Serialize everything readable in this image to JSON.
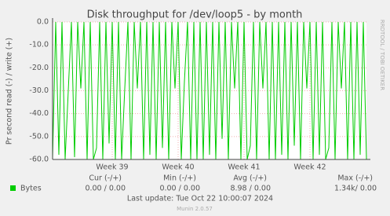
{
  "chart_data": {
    "type": "line",
    "title": "Disk throughput for /dev/loop5 - by month",
    "y_label": "Pr second read (-) / write (+)",
    "side_label": "RRDTOOL / TOBI OETIKER",
    "x": [
      0,
      1,
      2,
      3,
      4,
      5,
      6,
      7,
      8,
      9,
      10,
      11,
      12,
      13,
      14,
      15,
      16,
      17,
      18,
      19,
      20,
      21,
      22,
      23,
      24,
      25,
      26,
      27,
      28,
      29,
      30,
      31,
      32,
      33,
      34,
      35,
      36,
      37,
      38,
      39,
      40,
      41,
      42,
      43,
      44,
      45,
      46,
      47,
      48,
      49,
      50,
      51,
      52,
      53,
      54,
      55,
      56,
      57,
      58,
      59,
      60,
      61,
      62,
      63,
      64,
      65,
      66,
      67,
      68,
      69,
      70,
      71,
      72,
      73,
      74,
      75,
      76,
      77,
      78,
      79,
      80,
      81,
      82,
      83,
      84,
      85,
      86,
      87,
      88,
      89,
      90,
      91,
      92,
      93,
      94,
      95,
      96,
      97,
      98,
      99,
      100
    ],
    "xlim": [
      0,
      100
    ],
    "xticks": [
      {
        "value": 19,
        "label": "Week 39"
      },
      {
        "value": 40,
        "label": "Week 40"
      },
      {
        "value": 61,
        "label": "Week 41"
      },
      {
        "value": 82,
        "label": "Week 42"
      }
    ],
    "ylim": [
      -60,
      0
    ],
    "yticks": [
      {
        "value": -60,
        "label": "-60.0"
      },
      {
        "value": -50,
        "label": "-50.0"
      },
      {
        "value": -40,
        "label": "-40.0"
      },
      {
        "value": -30,
        "label": "-30.0"
      },
      {
        "value": -20,
        "label": "-20.0"
      },
      {
        "value": -10,
        "label": "-10.0"
      },
      {
        "value": 0,
        "label": "0.0"
      }
    ],
    "grid": true,
    "series": [
      {
        "name": "Bytes",
        "color": "#00cc00",
        "values": [
          -60,
          0,
          -58,
          0,
          -60,
          -30,
          0,
          -59,
          0,
          -29,
          0,
          -60,
          0,
          -60,
          -55,
          0,
          -60,
          0,
          -53,
          0,
          -60,
          0,
          -60,
          -29,
          0,
          -60,
          0,
          -29,
          0,
          -60,
          0,
          -58,
          0,
          -60,
          0,
          -55,
          0,
          -60,
          0,
          -29,
          0,
          -60,
          -26,
          0,
          -60,
          0,
          -60,
          0,
          -60,
          0,
          -58,
          0,
          -60,
          0,
          -51,
          0,
          -60,
          0,
          -29,
          0,
          -60,
          0,
          -60,
          -54,
          0,
          -60,
          0,
          -29,
          0,
          -60,
          0,
          -60,
          0,
          -58,
          0,
          -60,
          0,
          -54,
          0,
          -60,
          0,
          -29,
          0,
          -60,
          0,
          -58,
          0,
          -60,
          -55,
          0,
          -60,
          0,
          -29,
          0,
          -60,
          0,
          -60,
          0,
          -58,
          0,
          -60
        ]
      }
    ],
    "legend_table": {
      "headers": [
        "Cur (-/+)",
        "Min (-/+)",
        "Avg (-/+)",
        "Max (-/+)"
      ],
      "cells": [
        "0.00 /  0.00",
        "0.00 /  0.00",
        "8.98 /  0.00",
        "1.34k/  0.00"
      ]
    },
    "last_update": "Last update: Tue Oct 22 10:00:07 2024",
    "footer": "Munin 2.0.57"
  }
}
